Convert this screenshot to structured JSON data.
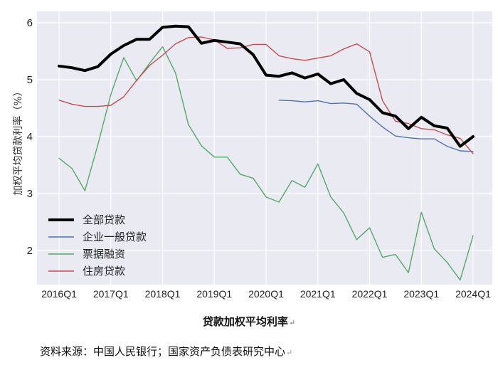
{
  "chart_data": {
    "type": "line",
    "title": "",
    "xlabel": "",
    "ylabel": "加权平均贷款利率（%）",
    "ylim": [
      1.4,
      6.2
    ],
    "yticks": [
      2,
      3,
      4,
      5,
      6
    ],
    "grid": true,
    "legend_position": "bottom-left",
    "x": [
      "2016Q1",
      "2016Q2",
      "2016Q3",
      "2016Q4",
      "2017Q1",
      "2017Q2",
      "2017Q3",
      "2017Q4",
      "2018Q1",
      "2018Q2",
      "2018Q3",
      "2018Q4",
      "2019Q1",
      "2019Q2",
      "2019Q3",
      "2019Q4",
      "2020Q1",
      "2020Q2",
      "2020Q3",
      "2020Q4",
      "2021Q1",
      "2021Q2",
      "2021Q3",
      "2021Q4",
      "2022Q1",
      "2022Q2",
      "2022Q3",
      "2022Q4",
      "2023Q1",
      "2023Q2",
      "2023Q3",
      "2023Q4",
      "2024Q1"
    ],
    "xtick_labels": [
      "2016Q1",
      "2017Q1",
      "2018Q1",
      "2019Q1",
      "2020Q1",
      "2021Q1",
      "2022Q1",
      "2023Q1",
      "2024Q1"
    ],
    "series": [
      {
        "name": "全部贷款",
        "color": "#000000",
        "values": [
          5.24,
          5.21,
          5.16,
          5.23,
          5.45,
          5.6,
          5.71,
          5.71,
          5.92,
          5.94,
          5.93,
          5.64,
          5.69,
          5.66,
          5.63,
          5.44,
          5.08,
          5.06,
          5.12,
          5.03,
          5.1,
          4.93,
          5.0,
          4.76,
          4.65,
          4.42,
          4.36,
          4.14,
          4.34,
          4.19,
          4.15,
          3.83,
          4.0
        ]
      },
      {
        "name": "企业一般贷款",
        "color": "#4c72b0",
        "values": [
          null,
          null,
          null,
          null,
          null,
          null,
          null,
          null,
          null,
          null,
          null,
          null,
          null,
          null,
          null,
          null,
          null,
          4.64,
          4.63,
          4.61,
          4.63,
          4.58,
          4.59,
          4.57,
          4.36,
          4.17,
          4.01,
          3.98,
          3.96,
          3.96,
          3.83,
          3.75,
          3.74
        ]
      },
      {
        "name": "票据融资",
        "color": "#55a868",
        "values": [
          3.62,
          3.44,
          3.05,
          3.86,
          4.74,
          5.39,
          4.98,
          5.29,
          5.58,
          5.12,
          4.21,
          3.84,
          3.64,
          3.64,
          3.34,
          3.27,
          2.94,
          2.85,
          3.23,
          3.11,
          3.52,
          2.94,
          2.66,
          2.19,
          2.4,
          1.88,
          1.93,
          1.61,
          2.67,
          2.03,
          1.79,
          1.48,
          2.26
        ]
      },
      {
        "name": "住房贷款",
        "color": "#c44e52",
        "values": [
          4.64,
          4.57,
          4.53,
          4.53,
          4.55,
          4.7,
          4.99,
          5.25,
          5.43,
          5.63,
          5.74,
          5.75,
          5.7,
          5.55,
          5.56,
          5.62,
          5.62,
          5.42,
          5.37,
          5.34,
          5.38,
          5.42,
          5.54,
          5.63,
          5.49,
          4.63,
          4.27,
          4.23,
          4.14,
          4.12,
          4.03,
          3.97,
          3.7
        ]
      }
    ]
  },
  "caption": "贷款加权平均利率",
  "source": "资料来源：中国人民银行；国家资产负债表研究中心"
}
